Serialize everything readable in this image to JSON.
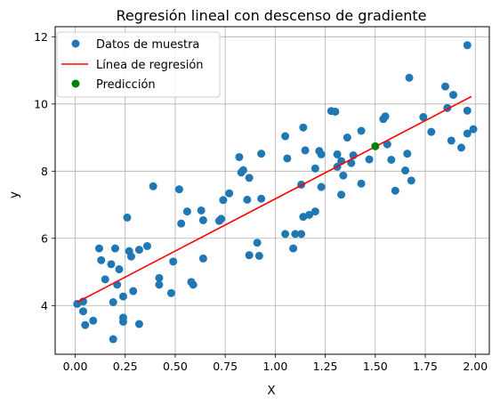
{
  "chart_data": {
    "type": "scatter",
    "title": "Regresión lineal con descenso de gradiente",
    "xlabel": "X",
    "ylabel": "y",
    "xlim": [
      -0.1,
      2.07
    ],
    "ylim": [
      2.55,
      12.3
    ],
    "xticks": [
      0.0,
      0.25,
      0.5,
      0.75,
      1.0,
      1.25,
      1.5,
      1.75,
      2.0
    ],
    "xtick_labels": [
      "0.00",
      "0.25",
      "0.50",
      "0.75",
      "1.00",
      "1.25",
      "1.50",
      "1.75",
      "2.00"
    ],
    "yticks": [
      4,
      6,
      8,
      10,
      12
    ],
    "ytick_labels": [
      "4",
      "6",
      "8",
      "10",
      "12"
    ],
    "grid": true,
    "legend_position": "top-left",
    "legend": [
      "Datos de muestra",
      "Línea de regresión",
      "Predicción"
    ],
    "colors": {
      "sample": "#1f77b4",
      "line": "#ff0000",
      "prediction": "#008000"
    },
    "series": [
      {
        "name": "Datos de muestra",
        "type": "scatter",
        "points": [
          [
            0.01,
            4.05
          ],
          [
            0.04,
            3.83
          ],
          [
            0.05,
            3.42
          ],
          [
            0.04,
            4.12
          ],
          [
            0.09,
            3.55
          ],
          [
            0.12,
            5.7
          ],
          [
            0.13,
            5.35
          ],
          [
            0.15,
            4.78
          ],
          [
            0.18,
            5.23
          ],
          [
            0.19,
            3.0
          ],
          [
            0.2,
            5.7
          ],
          [
            0.19,
            4.1
          ],
          [
            0.21,
            4.62
          ],
          [
            0.22,
            5.08
          ],
          [
            0.24,
            4.27
          ],
          [
            0.24,
            3.64
          ],
          [
            0.24,
            3.52
          ],
          [
            0.26,
            6.62
          ],
          [
            0.27,
            5.62
          ],
          [
            0.28,
            5.46
          ],
          [
            0.29,
            4.43
          ],
          [
            0.32,
            5.66
          ],
          [
            0.32,
            3.45
          ],
          [
            0.36,
            5.77
          ],
          [
            0.39,
            7.55
          ],
          [
            0.42,
            4.82
          ],
          [
            0.42,
            4.62
          ],
          [
            0.48,
            4.37
          ],
          [
            0.49,
            5.31
          ],
          [
            0.52,
            7.46
          ],
          [
            0.53,
            6.44
          ],
          [
            0.56,
            6.8
          ],
          [
            0.58,
            4.7
          ],
          [
            0.59,
            4.62
          ],
          [
            0.63,
            6.83
          ],
          [
            0.64,
            6.54
          ],
          [
            0.64,
            5.4
          ],
          [
            0.72,
            6.52
          ],
          [
            0.73,
            6.58
          ],
          [
            0.74,
            7.14
          ],
          [
            0.77,
            7.34
          ],
          [
            0.82,
            8.42
          ],
          [
            0.83,
            7.96
          ],
          [
            0.84,
            8.03
          ],
          [
            0.86,
            7.15
          ],
          [
            0.87,
            7.8
          ],
          [
            0.87,
            5.5
          ],
          [
            0.91,
            5.87
          ],
          [
            0.92,
            5.48
          ],
          [
            0.93,
            7.18
          ],
          [
            0.93,
            8.52
          ],
          [
            1.05,
            9.04
          ],
          [
            1.05,
            6.13
          ],
          [
            1.06,
            8.38
          ],
          [
            1.09,
            5.7
          ],
          [
            1.1,
            6.13
          ],
          [
            1.13,
            6.13
          ],
          [
            1.13,
            7.6
          ],
          [
            1.14,
            6.64
          ],
          [
            1.14,
            9.3
          ],
          [
            1.15,
            8.62
          ],
          [
            1.17,
            6.7
          ],
          [
            1.2,
            6.8
          ],
          [
            1.2,
            8.08
          ],
          [
            1.22,
            8.6
          ],
          [
            1.23,
            7.53
          ],
          [
            1.23,
            8.5
          ],
          [
            1.28,
            9.79
          ],
          [
            1.3,
            9.77
          ],
          [
            1.31,
            8.5
          ],
          [
            1.31,
            8.13
          ],
          [
            1.33,
            8.3
          ],
          [
            1.33,
            7.3
          ],
          [
            1.34,
            7.87
          ],
          [
            1.36,
            9.0
          ],
          [
            1.38,
            8.24
          ],
          [
            1.39,
            8.47
          ],
          [
            1.43,
            9.2
          ],
          [
            1.43,
            7.63
          ],
          [
            1.47,
            8.35
          ],
          [
            1.54,
            9.55
          ],
          [
            1.55,
            9.63
          ],
          [
            1.56,
            8.8
          ],
          [
            1.58,
            8.34
          ],
          [
            1.6,
            7.42
          ],
          [
            1.65,
            8.02
          ],
          [
            1.66,
            8.52
          ],
          [
            1.67,
            10.78
          ],
          [
            1.68,
            7.72
          ],
          [
            1.74,
            9.61
          ],
          [
            1.78,
            9.17
          ],
          [
            1.85,
            10.52
          ],
          [
            1.86,
            9.88
          ],
          [
            1.88,
            8.91
          ],
          [
            1.89,
            10.27
          ],
          [
            1.93,
            8.7
          ],
          [
            1.96,
            9.12
          ],
          [
            1.96,
            9.8
          ],
          [
            1.96,
            11.75
          ],
          [
            1.99,
            9.25
          ]
        ]
      },
      {
        "name": "Línea de regresión",
        "type": "line",
        "points": [
          [
            0.01,
            4.1
          ],
          [
            1.98,
            10.22
          ]
        ]
      },
      {
        "name": "Predicción",
        "type": "scatter",
        "points": [
          [
            1.5,
            8.74
          ]
        ]
      }
    ]
  }
}
